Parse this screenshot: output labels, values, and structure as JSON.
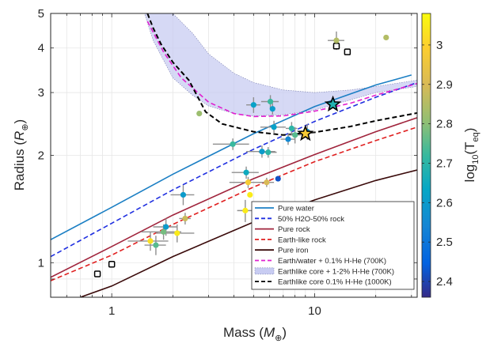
{
  "chart_data": {
    "type": "scatter",
    "xlabel": {
      "main": "Mass (",
      "sym": "M",
      "sub": "⊕",
      "close": ")"
    },
    "ylabel": {
      "main": "Radius (",
      "sym": "R",
      "sub": "⊕",
      "close": ")"
    },
    "x_scale": "log",
    "y_scale": "log",
    "xlim": [
      0.5,
      32
    ],
    "ylim": [
      0.8,
      5
    ],
    "x_ticks": [
      {
        "value": 1,
        "label": "1"
      },
      {
        "value": 10,
        "label": "10"
      }
    ],
    "y_ticks": [
      {
        "value": 1,
        "label": "1"
      },
      {
        "value": 2,
        "label": "2"
      },
      {
        "value": 3,
        "label": "3"
      },
      {
        "value": 4,
        "label": "4"
      },
      {
        "value": 5,
        "label": "5"
      }
    ],
    "grid": true,
    "legend_position": "bottom-right",
    "colorbar": {
      "label": {
        "main": "log",
        "sub": "10",
        "open": "(T",
        "tsub": "eq",
        "close": ")"
      },
      "range": [
        2.36,
        3.08
      ],
      "ticks": [
        {
          "value": 2.4,
          "label": "2.4"
        },
        {
          "value": 2.5,
          "label": "2.5"
        },
        {
          "value": 2.6,
          "label": "2.6"
        },
        {
          "value": 2.7,
          "label": "2.7"
        },
        {
          "value": 2.8,
          "label": "2.8"
        },
        {
          "value": 2.9,
          "label": "2.9"
        },
        {
          "value": 3.0,
          "label": "3"
        }
      ]
    },
    "models": [
      {
        "name": "Pure water",
        "color": "#1b7fc4",
        "dash": "solid",
        "points": [
          [
            0.5,
            1.16
          ],
          [
            1,
            1.43
          ],
          [
            2,
            1.77
          ],
          [
            5,
            2.3
          ],
          [
            10,
            2.74
          ],
          [
            20,
            3.15
          ],
          [
            30,
            3.36
          ]
        ]
      },
      {
        "name": "50% H2O-50% rock",
        "color": "#1f2fe0",
        "dash": "dashed",
        "points": [
          [
            0.5,
            1.04
          ],
          [
            1,
            1.29
          ],
          [
            2,
            1.6
          ],
          [
            5,
            2.08
          ],
          [
            10,
            2.49
          ],
          [
            20,
            2.91
          ],
          [
            32,
            3.2
          ]
        ]
      },
      {
        "name": "Pure rock",
        "color": "#a0243c",
        "dash": "solid",
        "points": [
          [
            0.5,
            0.91
          ],
          [
            1,
            1.11
          ],
          [
            2,
            1.36
          ],
          [
            5,
            1.72
          ],
          [
            10,
            2.01
          ],
          [
            20,
            2.33
          ],
          [
            32,
            2.55
          ]
        ]
      },
      {
        "name": "Earth-like rock",
        "color": "#e02020",
        "dash": "dashed",
        "points": [
          [
            0.5,
            0.89
          ],
          [
            1,
            1.05
          ],
          [
            2,
            1.28
          ],
          [
            5,
            1.63
          ],
          [
            10,
            1.92
          ],
          [
            20,
            2.2
          ],
          [
            32,
            2.4
          ]
        ]
      },
      {
        "name": "Pure iron",
        "color": "#3a0a0a",
        "dash": "solid",
        "points": [
          [
            0.7,
            0.8
          ],
          [
            1,
            0.86
          ],
          [
            2,
            1.04
          ],
          [
            5,
            1.3
          ],
          [
            10,
            1.5
          ],
          [
            20,
            1.7
          ],
          [
            32,
            1.82
          ]
        ]
      },
      {
        "name": "Earth/water + 0.1% H-He (700K)",
        "color": "#e020d0",
        "dash": "dashed",
        "points": [
          [
            1.5,
            4.75
          ],
          [
            1.8,
            3.9
          ],
          [
            2.2,
            3.3
          ],
          [
            3,
            2.82
          ],
          [
            4,
            2.62
          ],
          [
            5,
            2.57
          ],
          [
            7,
            2.58
          ],
          [
            10,
            2.66
          ],
          [
            15,
            2.8
          ],
          [
            20,
            2.95
          ],
          [
            32,
            3.18
          ]
        ]
      },
      {
        "name": "Earthlike core + 1-2% H-He (700K)",
        "color": "#c8ccf2",
        "dash": "band",
        "upper": [
          [
            1.5,
            5
          ],
          [
            2,
            5
          ],
          [
            2.5,
            4.4
          ],
          [
            3,
            3.85
          ],
          [
            4,
            3.4
          ],
          [
            5,
            3.2
          ],
          [
            7,
            3.05
          ],
          [
            10,
            3.0
          ],
          [
            15,
            3.05
          ],
          [
            20,
            3.12
          ],
          [
            32,
            3.25
          ]
        ],
        "lower": [
          [
            1.45,
            5
          ],
          [
            1.6,
            4.2
          ],
          [
            2,
            3.3
          ],
          [
            2.5,
            2.95
          ],
          [
            3,
            2.75
          ],
          [
            4,
            2.62
          ],
          [
            5,
            2.58
          ],
          [
            7,
            2.6
          ],
          [
            10,
            2.68
          ],
          [
            15,
            2.86
          ],
          [
            20,
            3.0
          ],
          [
            32,
            3.12
          ]
        ]
      },
      {
        "name": "Earthlike core 0.1% H-He (1000K)",
        "color": "#000000",
        "dash": "dashed",
        "points": [
          [
            1.5,
            5
          ],
          [
            1.6,
            4.55
          ],
          [
            1.75,
            4.1
          ],
          [
            2,
            3.65
          ],
          [
            2.4,
            3.25
          ],
          [
            2.9,
            2.65
          ],
          [
            3.5,
            2.45
          ],
          [
            5,
            2.33
          ],
          [
            7,
            2.28
          ],
          [
            10,
            2.32
          ],
          [
            15,
            2.41
          ],
          [
            20,
            2.5
          ],
          [
            32,
            2.63
          ]
        ]
      }
    ],
    "points": [
      {
        "x": 0.85,
        "y": 0.93,
        "marker": "square"
      },
      {
        "x": 1.0,
        "y": 0.99,
        "marker": "square"
      },
      {
        "x": 12.8,
        "y": 4.05,
        "marker": "square"
      },
      {
        "x": 14.5,
        "y": 3.9,
        "marker": "square"
      },
      {
        "x": 1.55,
        "y": 1.15,
        "t": 3.03,
        "xerr": 0.35,
        "yerr": 0.07
      },
      {
        "x": 1.65,
        "y": 1.12,
        "t": 2.75,
        "xerr": 0.2,
        "yerr": 0.07
      },
      {
        "x": 1.8,
        "y": 1.22,
        "t": 2.78,
        "xerr": 0.4,
        "yerr": 0.06
      },
      {
        "x": 1.85,
        "y": 1.26,
        "t": 2.6,
        "xerr": 0.25,
        "yerr": 0.07
      },
      {
        "x": 2.1,
        "y": 1.21,
        "t": 3.05,
        "xerr": 0.45,
        "yerr": 0.07
      },
      {
        "x": 2.25,
        "y": 1.55,
        "t": 2.6,
        "xerr": 0.3,
        "yerr": 0.1
      },
      {
        "x": 2.3,
        "y": 1.33,
        "t": 2.88,
        "xerr": 0.15,
        "yerr": 0.05
      },
      {
        "x": 2.7,
        "y": 2.62,
        "t": 2.82,
        "xerr": 0.0,
        "yerr": 0.0
      },
      {
        "x": 3.95,
        "y": 2.15,
        "t": 2.72,
        "xerr": 0.8,
        "yerr": 0.08
      },
      {
        "x": 4.55,
        "y": 1.4,
        "t": 3.05,
        "xerr": 0.4,
        "yerr": 0.1
      },
      {
        "x": 4.6,
        "y": 1.79,
        "t": 2.65,
        "xerr": 0.7,
        "yerr": 0.07
      },
      {
        "x": 4.7,
        "y": 1.68,
        "t": 2.98,
        "xerr": 0.9,
        "yerr": 0.06
      },
      {
        "x": 4.8,
        "y": 1.55,
        "t": 3.05,
        "xerr": 0.0,
        "yerr": 0.0
      },
      {
        "x": 5.0,
        "y": 2.77,
        "t": 2.62,
        "xerr": 0.4,
        "yerr": 0.14
      },
      {
        "x": 5.5,
        "y": 2.05,
        "t": 2.6,
        "xerr": 0.9,
        "yerr": 0.08
      },
      {
        "x": 5.8,
        "y": 1.68,
        "t": 2.9,
        "xerr": 0.5,
        "yerr": 0.05
      },
      {
        "x": 5.9,
        "y": 2.04,
        "t": 2.7,
        "xerr": 0.6,
        "yerr": 0.07
      },
      {
        "x": 6.05,
        "y": 2.83,
        "t": 2.72,
        "xerr": 0.6,
        "yerr": 0.12
      },
      {
        "x": 6.2,
        "y": 2.7,
        "t": 2.6,
        "xerr": 0.0,
        "yerr": 0.1
      },
      {
        "x": 6.3,
        "y": 2.4,
        "t": 2.62,
        "xerr": 0.9,
        "yerr": 0.1
      },
      {
        "x": 6.6,
        "y": 1.72,
        "t": 2.42,
        "xerr": 0.0,
        "yerr": 0.0
      },
      {
        "x": 7.4,
        "y": 2.22,
        "t": 2.55,
        "xerr": 0.6,
        "yerr": 0.08
      },
      {
        "x": 7.7,
        "y": 2.38,
        "t": 2.7,
        "xerr": 0.5,
        "yerr": 0.1
      },
      {
        "x": 8.0,
        "y": 2.28,
        "t": 2.75,
        "xerr": 0.6,
        "yerr": 0.12
      },
      {
        "x": 9.2,
        "y": 2.33,
        "t": 2.58,
        "xerr": 0.8,
        "yerr": 0.12
      },
      {
        "x": 12.8,
        "y": 4.2,
        "t": 2.85,
        "xerr": 1.2,
        "yerr": 0.25
      },
      {
        "x": 22.5,
        "y": 4.28,
        "t": 2.85,
        "xerr": 0.0,
        "yerr": 0.0
      },
      {
        "x": 9.0,
        "y": 2.3,
        "t": 2.98,
        "marker": "star"
      },
      {
        "x": 12.3,
        "y": 2.78,
        "t": 2.68,
        "marker": "star"
      }
    ]
  }
}
